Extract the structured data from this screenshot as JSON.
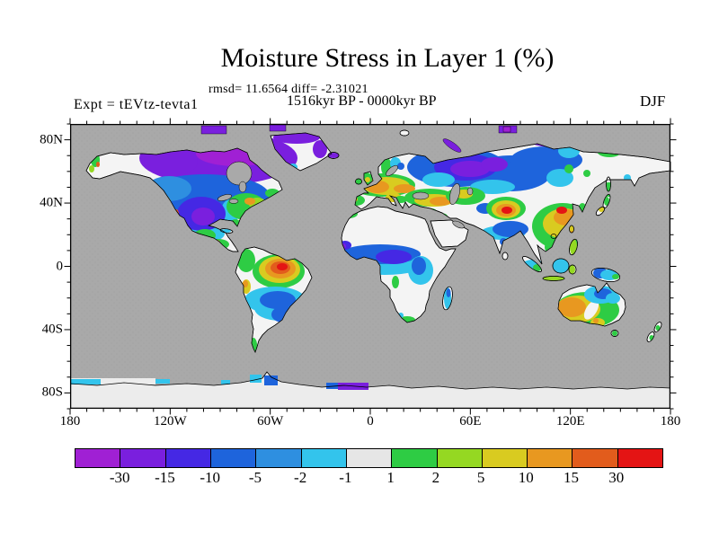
{
  "header": {
    "title": "Moisture Stress in Layer 1 (%)",
    "stats": "rmsd= 11.6564 diff= -2.31021",
    "period": "1516kyr BP - 0000kyr BP",
    "experiment": "Expt = tEVtz-tevta1",
    "season": "DJF"
  },
  "chart_data": {
    "type": "heatmap",
    "title": "Moisture Stress in Layer 1 (%)",
    "subtitle_stats": {
      "rmsd": 11.6564,
      "diff": -2.31021
    },
    "period": "1516kyr BP - 0000kyr BP",
    "experiment": "tEVtz-tevta1",
    "season": "DJF",
    "projection": "equirectangular world map, 180W-180E, 90S-90N",
    "units": "%",
    "xticks": [
      {
        "label": "180",
        "lon": -180
      },
      {
        "label": "120W",
        "lon": -120
      },
      {
        "label": "60W",
        "lon": -60
      },
      {
        "label": "0",
        "lon": 0
      },
      {
        "label": "60E",
        "lon": 60
      },
      {
        "label": "120E",
        "lon": 120
      },
      {
        "label": "180",
        "lon": 180
      }
    ],
    "yticks": [
      {
        "label": "80N",
        "lat": 80
      },
      {
        "label": "40N",
        "lat": 40
      },
      {
        "label": "0",
        "lat": 0
      },
      {
        "label": "40S",
        "lat": -40
      },
      {
        "label": "80S",
        "lat": -80
      }
    ],
    "colorbar": {
      "thresholds": [
        -30,
        -15,
        -10,
        -5,
        -2,
        -1,
        1,
        2,
        5,
        10,
        15,
        30
      ],
      "colors": [
        "#A020D4",
        "#7A1FDE",
        "#4528E4",
        "#1E64DC",
        "#2E8FE0",
        "#33C4EC",
        "#E6E6E6",
        "#2ECC44",
        "#95D822",
        "#D9CB20",
        "#E89820",
        "#E25C1C",
        "#E41414"
      ]
    },
    "ocean_color": "#A9A9A9",
    "land_neutral_color": "#F4F4F4",
    "antarctica_color": "#ECECEC",
    "anomaly_regions": [
      {
        "region": "Arctic Canada and archipelago",
        "bin": "-30 to -15"
      },
      {
        "region": "Central North America",
        "bin": "-15 to -5"
      },
      {
        "region": "Southwest US / Pacific coast",
        "bin": "10 to 30"
      },
      {
        "region": "Eastern US",
        "bin": "2 to 10"
      },
      {
        "region": "Northern Amazon hotspot",
        "bin": "15 to >30"
      },
      {
        "region": "Central Brazil",
        "bin": "-10 to -1"
      },
      {
        "region": "Western / Central Europe",
        "bin": "5 to 15"
      },
      {
        "region": "Iceland",
        "bin": "-30 to -15"
      },
      {
        "region": "West and Central Siberia",
        "bin": "-30 to -5"
      },
      {
        "region": "Arctic Siberian coast",
        "bin": "below -30"
      },
      {
        "region": "Anatolia / Caucasus / Iran",
        "bin": "5 to 15"
      },
      {
        "region": "Central Asia (Tarim) hotspot",
        "bin": "15 to >30"
      },
      {
        "region": "North China Plain",
        "bin": "10 to 30"
      },
      {
        "region": "Amur / NE Asia spots",
        "bin": "10 to 30"
      },
      {
        "region": "Sahel to Congo belt",
        "bin": "-10 to -2"
      },
      {
        "region": "Madagascar",
        "bin": "-5 to -1"
      },
      {
        "region": "Western Australia",
        "bin": "5 to 15"
      },
      {
        "region": "Northeastern Australia",
        "bin": "-10 to -2"
      },
      {
        "region": "Antarctic Peninsula fringe",
        "bin": "-10 to -2"
      }
    ]
  }
}
